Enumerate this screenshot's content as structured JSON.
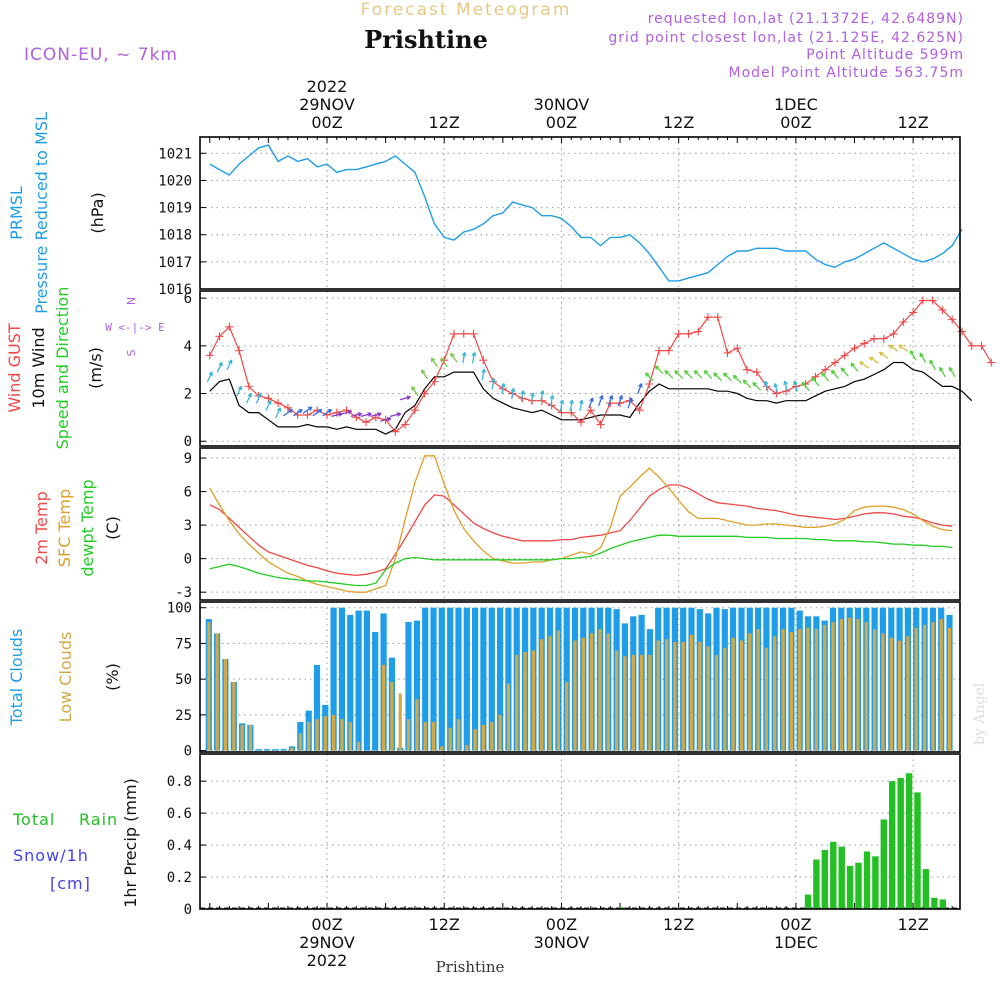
{
  "header": {
    "top_title": "Forecast Meteogram",
    "location": "Prishtine",
    "model": "ICON-EU, ~ 7km",
    "requested": "requested lon,lat (21.1372E, 42.6489N)",
    "grid_point": "grid point closest lon,lat (21.125E, 42.625N)",
    "point_altitude": "Point Altitude 599m",
    "model_altitude": "Model Point Altitude 563.75m",
    "credit": "by Angel",
    "footer_location": "Prishtine"
  },
  "colors": {
    "pressure": "#1e9ee8",
    "gust": "#f04848",
    "wind": "#000000",
    "t2m": "#f04848",
    "sfc": "#dea028",
    "dewpt": "#22cc22",
    "total_cloud": "#1e9ee8",
    "low_cloud": "#d4a844",
    "rain": "#22c022",
    "snow": "#4444ee",
    "annotation": "#b060e0",
    "title_orange": "#e8c888"
  },
  "time_axis": {
    "top": [
      {
        "hour": 24,
        "lines": [
          "2022",
          "29NOV",
          "00Z"
        ]
      },
      {
        "hour": 36,
        "lines": [
          "12Z"
        ]
      },
      {
        "hour": 48,
        "lines": [
          "30NOV",
          "00Z"
        ]
      },
      {
        "hour": 60,
        "lines": [
          "12Z"
        ]
      },
      {
        "hour": 72,
        "lines": [
          "1DEC",
          "00Z"
        ]
      },
      {
        "hour": 84,
        "lines": [
          "12Z"
        ]
      }
    ],
    "bottom": [
      {
        "hour": 24,
        "lines": [
          "00Z",
          "29NOV",
          "2022"
        ]
      },
      {
        "hour": 36,
        "lines": [
          "12Z"
        ]
      },
      {
        "hour": 48,
        "lines": [
          "00Z",
          "30NOV"
        ]
      },
      {
        "hour": 60,
        "lines": [
          "12Z"
        ]
      },
      {
        "hour": 72,
        "lines": [
          "00Z",
          "1DEC"
        ]
      },
      {
        "hour": 84,
        "lines": [
          "12Z"
        ]
      }
    ]
  },
  "chart_data": [
    {
      "type": "line",
      "panel": "pressure",
      "left_labels": [
        "PRMSL",
        "Pressure Reduced to MSL"
      ],
      "unit": "(hPa)",
      "ylim": [
        1016,
        1021.6
      ],
      "yticks": [
        1016,
        1017,
        1018,
        1019,
        1020,
        1021
      ],
      "x_hours_start": 12,
      "series": [
        {
          "values": [
            1020.6,
            1020.4,
            1020.2,
            1020.6,
            1020.9,
            1021.2,
            1021.3,
            1020.7,
            1020.9,
            1020.7,
            1020.8,
            1020.5,
            1020.6,
            1020.3,
            1020.4,
            1020.4,
            1020.5,
            1020.6,
            1020.7,
            1020.9,
            1020.6,
            1020.3,
            1019.4,
            1018.4,
            1017.9,
            1017.8,
            1018.1,
            1018.2,
            1018.4,
            1018.7,
            1018.8,
            1019.2,
            1019.1,
            1019.0,
            1018.7,
            1018.7,
            1018.6,
            1018.3,
            1017.9,
            1017.9,
            1017.6,
            1017.9,
            1017.9,
            1018.0,
            1017.7,
            1017.3,
            1016.8,
            1016.3,
            1016.3,
            1016.4,
            1016.5,
            1016.6,
            1016.9,
            1017.2,
            1017.4,
            1017.4,
            1017.5,
            1017.5,
            1017.5,
            1017.4,
            1017.4,
            1017.4,
            1017.1,
            1016.9,
            1016.8,
            1017.0,
            1017.1,
            1017.3,
            1017.5,
            1017.7,
            1017.5,
            1017.3,
            1017.1,
            1017.0,
            1017.1,
            1017.3,
            1017.6,
            1018.2
          ]
        }
      ]
    },
    {
      "type": "line",
      "panel": "wind",
      "left_labels": [
        "Wind GUST",
        "10m Wind",
        "Speed and Direction"
      ],
      "unit": "(m/s)",
      "compass": [
        "N",
        "W <-|-> E",
        "S"
      ],
      "ylim": [
        -0.2,
        6.3
      ],
      "yticks": [
        0,
        2,
        4,
        6
      ],
      "x_hours_start": 12,
      "series": [
        {
          "key": "gust",
          "values": [
            3.6,
            4.4,
            4.8,
            3.8,
            2.3,
            1.9,
            1.8,
            1.6,
            1.4,
            1.1,
            1.1,
            1.3,
            1.1,
            1.2,
            1.3,
            1.0,
            0.8,
            1.0,
            0.9,
            0.4,
            0.7,
            1.3,
            2.0,
            2.5,
            3.4,
            4.5,
            4.5,
            4.5,
            3.4,
            2.5,
            2.2,
            2.0,
            1.8,
            1.7,
            1.7,
            1.5,
            1.2,
            1.2,
            0.8,
            1.3,
            0.7,
            1.6,
            1.6,
            1.7,
            1.3,
            2.4,
            3.8,
            3.8,
            4.5,
            4.5,
            4.6,
            5.2,
            5.2,
            3.7,
            3.9,
            3.0,
            2.9,
            2.3,
            2.0,
            2.1,
            2.3,
            2.4,
            2.7,
            3.0,
            3.3,
            3.6,
            3.9,
            4.1,
            4.3,
            4.3,
            4.5,
            5.0,
            5.4,
            5.9,
            5.9,
            5.5,
            5.1,
            4.6,
            4.0,
            4.0,
            3.3
          ]
        },
        {
          "key": "wind",
          "values": [
            2.1,
            2.5,
            2.6,
            1.5,
            1.2,
            1.2,
            0.9,
            0.6,
            0.6,
            0.6,
            0.7,
            0.6,
            0.6,
            0.5,
            0.6,
            0.5,
            0.5,
            0.5,
            0.3,
            0.5,
            1.2,
            1.5,
            2.2,
            2.7,
            2.7,
            2.9,
            2.9,
            2.9,
            2.2,
            1.8,
            1.6,
            1.4,
            1.3,
            1.2,
            1.3,
            1.1,
            0.9,
            0.9,
            0.9,
            1.0,
            1.1,
            1.1,
            1.1,
            1.0,
            1.6,
            2.1,
            2.4,
            2.2,
            2.2,
            2.2,
            2.2,
            2.2,
            2.1,
            2.1,
            2.0,
            1.8,
            1.7,
            1.7,
            1.6,
            1.7,
            1.7,
            1.7,
            1.9,
            2.1,
            2.2,
            2.3,
            2.5,
            2.6,
            2.8,
            3.0,
            3.3,
            3.3,
            3.0,
            2.9,
            2.6,
            2.3,
            2.3,
            2.1,
            1.7
          ]
        }
      ],
      "arrows": [
        {
          "from": 0,
          "to": 7,
          "deg": 205,
          "color": "#3ab8d8"
        },
        {
          "from": 8,
          "to": 12,
          "deg": 235,
          "color": "#3a6ee0"
        },
        {
          "from": 13,
          "to": 20,
          "deg": 255,
          "color": "#8a38c8"
        },
        {
          "from": 21,
          "to": 25,
          "deg": 145,
          "color": "#7ac850"
        },
        {
          "from": 26,
          "to": 38,
          "deg": 190,
          "color": "#3ab8d8"
        },
        {
          "from": 39,
          "to": 44,
          "deg": 200,
          "color": "#3a6ee0"
        },
        {
          "from": 45,
          "to": 56,
          "deg": 135,
          "color": "#56d040"
        },
        {
          "from": 57,
          "to": 60,
          "deg": 165,
          "color": "#3ab8d8"
        },
        {
          "from": 61,
          "to": 66,
          "deg": 140,
          "color": "#56d040"
        },
        {
          "from": 67,
          "to": 71,
          "deg": 125,
          "color": "#d8c040"
        },
        {
          "from": 72,
          "to": 76,
          "deg": 150,
          "color": "#56d040"
        }
      ]
    },
    {
      "type": "line",
      "panel": "temperature",
      "left_labels": [
        "2m Temp",
        "SFC Temp",
        "dewpt Temp"
      ],
      "unit": "(C)",
      "ylim": [
        -3.7,
        9.9
      ],
      "yticks": [
        -3,
        0,
        3,
        6,
        9
      ],
      "x_hours_start": 12,
      "series": [
        {
          "key": "t2m",
          "values": [
            4.8,
            4.4,
            3.6,
            2.8,
            2.0,
            1.2,
            0.6,
            0.3,
            0.0,
            -0.3,
            -0.6,
            -0.8,
            -1.1,
            -1.3,
            -1.4,
            -1.5,
            -1.4,
            -1.2,
            -0.9,
            0.4,
            1.8,
            3.3,
            4.8,
            5.7,
            5.6,
            4.8,
            4.0,
            3.2,
            2.7,
            2.3,
            2.0,
            1.8,
            1.6,
            1.6,
            1.6,
            1.6,
            1.7,
            1.7,
            1.9,
            2.0,
            2.1,
            2.3,
            2.5,
            3.4,
            4.5,
            5.6,
            6.2,
            6.6,
            6.6,
            6.3,
            5.8,
            5.3,
            5.0,
            4.9,
            4.8,
            4.7,
            4.5,
            4.4,
            4.3,
            4.1,
            3.9,
            3.8,
            3.7,
            3.6,
            3.5,
            3.6,
            3.8,
            4.0,
            4.1,
            4.1,
            4.0,
            3.8,
            3.7,
            3.5,
            3.2,
            3.0,
            2.9
          ]
        },
        {
          "key": "sfc",
          "values": [
            6.3,
            4.8,
            3.4,
            2.2,
            1.3,
            0.5,
            -0.3,
            -0.8,
            -1.3,
            -1.6,
            -2.0,
            -2.3,
            -2.5,
            -2.7,
            -2.9,
            -3.0,
            -3.0,
            -2.7,
            -2.4,
            0.0,
            3.5,
            6.8,
            9.2,
            9.2,
            6.7,
            4.3,
            2.7,
            1.6,
            0.7,
            0.0,
            -0.2,
            -0.4,
            -0.4,
            -0.3,
            -0.3,
            -0.1,
            0.0,
            0.3,
            0.6,
            0.4,
            1.0,
            2.8,
            5.6,
            6.4,
            7.3,
            8.1,
            7.3,
            6.3,
            5.2,
            4.2,
            3.6,
            3.6,
            3.6,
            3.4,
            3.2,
            3.0,
            3.0,
            3.1,
            3.1,
            3.0,
            2.9,
            2.8,
            2.8,
            2.9,
            3.1,
            3.5,
            4.3,
            4.6,
            4.7,
            4.7,
            4.6,
            4.4,
            4.0,
            3.4,
            2.9,
            2.6,
            2.5
          ]
        },
        {
          "key": "dewpt",
          "values": [
            -0.9,
            -0.7,
            -0.5,
            -0.7,
            -1.0,
            -1.3,
            -1.5,
            -1.7,
            -1.8,
            -1.9,
            -2.0,
            -2.0,
            -2.1,
            -2.2,
            -2.3,
            -2.4,
            -2.4,
            -2.2,
            -1.0,
            -0.4,
            0.0,
            0.1,
            0.0,
            -0.1,
            -0.1,
            -0.1,
            -0.1,
            -0.1,
            -0.1,
            -0.1,
            -0.1,
            -0.1,
            -0.1,
            -0.1,
            -0.1,
            -0.1,
            0.0,
            0.0,
            0.1,
            0.2,
            0.5,
            0.9,
            1.2,
            1.5,
            1.7,
            1.9,
            2.1,
            2.1,
            2.0,
            2.0,
            2.0,
            2.0,
            2.0,
            2.0,
            2.0,
            1.9,
            1.9,
            1.9,
            1.8,
            1.8,
            1.8,
            1.8,
            1.7,
            1.7,
            1.6,
            1.6,
            1.6,
            1.5,
            1.5,
            1.4,
            1.3,
            1.3,
            1.2,
            1.2,
            1.1,
            1.1,
            1.0
          ]
        }
      ]
    },
    {
      "type": "bar",
      "panel": "clouds",
      "left_labels": [
        "Total Clouds",
        "Low Clouds"
      ],
      "unit": "(%)",
      "ylim": [
        -1,
        104
      ],
      "yticks": [
        0,
        25,
        50,
        75,
        100
      ],
      "x_hours_start": 12,
      "series": [
        {
          "key": "total",
          "values": [
            92,
            82,
            64,
            48,
            19,
            18,
            1,
            1,
            1,
            1,
            3,
            20,
            28,
            60,
            32,
            100,
            100,
            95,
            98,
            98,
            83,
            96,
            65,
            2,
            90,
            91,
            100,
            100,
            100,
            100,
            100,
            100,
            100,
            100,
            100,
            100,
            100,
            100,
            100,
            100,
            100,
            100,
            100,
            100,
            100,
            100,
            100,
            100,
            100,
            99,
            89,
            94,
            95,
            85,
            100,
            100,
            100,
            100,
            100,
            99,
            96,
            100,
            99,
            100,
            100,
            100,
            100,
            100,
            100,
            100,
            100,
            98,
            94,
            94,
            91,
            100,
            100,
            100,
            100,
            100,
            100,
            100,
            100,
            100,
            100,
            100,
            100,
            100,
            100,
            95
          ]
        },
        {
          "key": "low",
          "values": [
            90,
            82,
            64,
            48,
            18,
            18,
            0,
            0,
            0,
            0,
            2,
            12,
            20,
            22,
            24,
            25,
            22,
            20,
            6,
            0,
            0,
            60,
            48,
            40,
            22,
            36,
            20,
            20,
            3,
            16,
            22,
            4,
            15,
            18,
            20,
            25,
            47,
            67,
            69,
            70,
            78,
            80,
            84,
            48,
            77,
            79,
            82,
            85,
            82,
            70,
            66,
            67,
            67,
            67,
            77,
            78,
            76,
            76,
            81,
            76,
            73,
            67,
            72,
            79,
            77,
            82,
            85,
            72,
            80,
            85,
            83,
            85,
            86,
            85,
            88,
            90,
            92,
            93,
            92,
            90,
            85,
            82,
            79,
            77,
            80,
            86,
            88,
            90,
            92,
            86
          ]
        }
      ]
    },
    {
      "type": "bar",
      "panel": "precipitation",
      "left_labels": [
        "Total",
        "Rain",
        "Snow/1h",
        "[cm]"
      ],
      "ylabel": "1hr Precip (mm)",
      "ylim": [
        0,
        0.97
      ],
      "yticks": [
        0,
        0.2,
        0.4,
        0.6,
        0.8
      ],
      "ytick_labels": [
        "0",
        "0.2",
        "0.4",
        "0.6",
        "0.8"
      ],
      "x_hours_start": 12,
      "series": [
        {
          "key": "rain",
          "values": [
            0,
            0,
            0,
            0,
            0,
            0,
            0,
            0,
            0,
            0,
            0,
            0,
            0,
            0,
            0,
            0,
            0,
            0,
            0,
            0,
            0,
            0,
            0,
            0,
            0,
            0,
            0,
            0,
            0,
            0,
            0,
            0,
            0,
            0,
            0,
            0,
            0,
            0,
            0,
            0,
            0,
            0,
            0,
            0,
            0,
            0,
            0,
            0,
            0,
            0.01,
            0,
            0,
            0,
            0,
            0,
            0,
            0,
            0,
            0,
            0,
            0,
            0,
            0,
            0,
            0,
            0,
            0,
            0,
            0,
            0,
            0,
            0.09,
            0.31,
            0.37,
            0.42,
            0.39,
            0.27,
            0.29,
            0.36,
            0.33,
            0.56,
            0.8,
            0.82,
            0.85,
            0.73,
            0.25,
            0.07,
            0.06
          ]
        }
      ]
    }
  ]
}
